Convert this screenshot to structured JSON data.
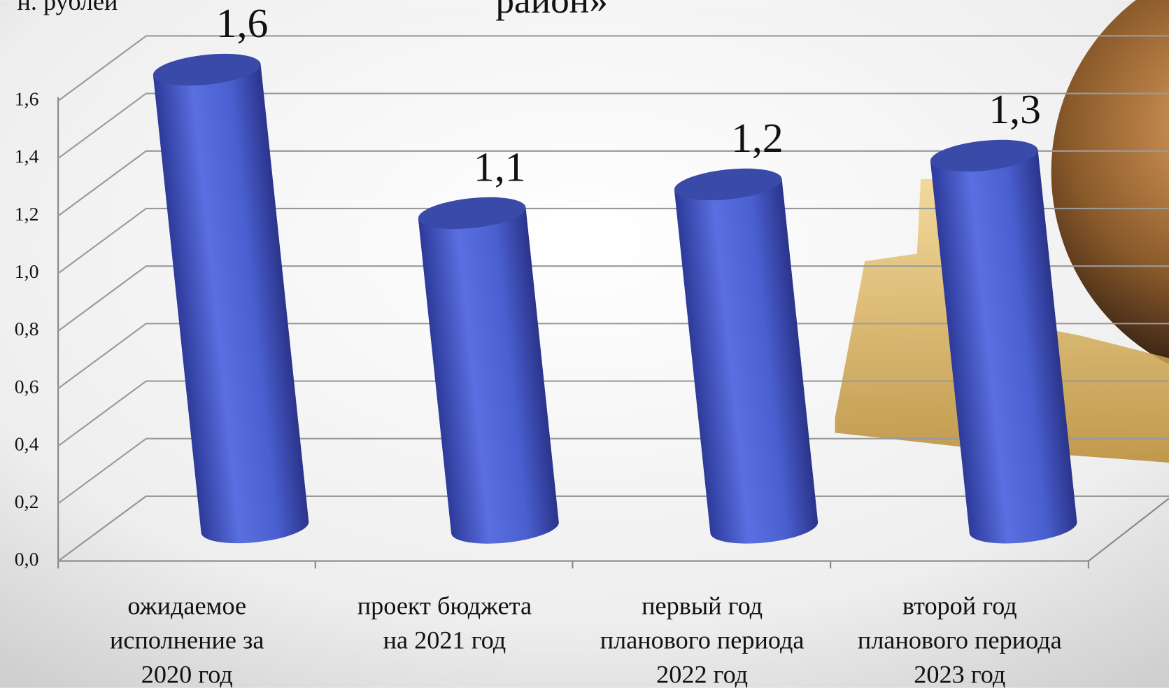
{
  "chart_data": {
    "type": "bar",
    "title": "район»",
    "unit_label": "н. рублей",
    "categories": [
      "ожидаемое\nисполнение за\n2020 год",
      "проект бюджета\nна 2021 год",
      "первый год\nпланового периода\n2022 год",
      "второй год\nпланового периода\n2023 год"
    ],
    "values": [
      1.6,
      1.1,
      1.2,
      1.3
    ],
    "value_labels": [
      "1,6",
      "1,1",
      "1,2",
      "1,3"
    ],
    "color": "#4a5fd0",
    "ylim": [
      0,
      1.6
    ],
    "yticks": [
      {
        "value": 0,
        "label": "0,0"
      },
      {
        "value": 0.2,
        "label": "0,2"
      },
      {
        "value": 0.4,
        "label": "0,4"
      },
      {
        "value": 0.6,
        "label": "0,6"
      },
      {
        "value": 0.8,
        "label": "0,8"
      },
      {
        "value": 1,
        "label": "1,0"
      },
      {
        "value": 1.2,
        "label": "1,2"
      },
      {
        "value": 1.4,
        "label": "1,4"
      },
      {
        "value": 1.6,
        "label": "1,6"
      }
    ],
    "grid": true
  }
}
